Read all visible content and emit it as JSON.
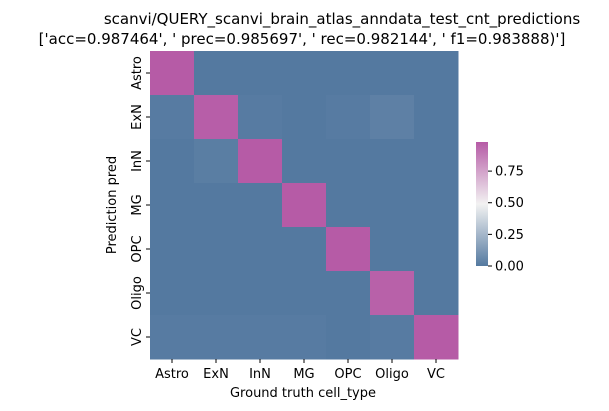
{
  "chart_data": {
    "type": "heatmap",
    "title_line1": "scanvi/QUERY_scanvi_brain_atlas_anndata_test_cnt_predictions",
    "title_line2": "['acc=0.987464', '  prec=0.985697', ' rec=0.982144', ' f1=0.983888)']",
    "xlabel": "Ground truth cell_type",
    "ylabel": "Prediction pred",
    "x_categories": [
      "Astro",
      "ExN",
      "InN",
      "MG",
      "OPC",
      "Oligo",
      "VC"
    ],
    "y_categories": [
      "Astro",
      "ExN",
      "InN",
      "MG",
      "OPC",
      "Oligo",
      "VC"
    ],
    "values": [
      [
        0.98,
        0.0,
        0.0,
        0.0,
        0.0,
        0.0,
        0.0
      ],
      [
        0.01,
        0.97,
        0.01,
        0.0,
        0.01,
        0.03,
        0.0
      ],
      [
        0.0,
        0.02,
        0.98,
        0.0,
        0.0,
        0.0,
        0.0
      ],
      [
        0.0,
        0.0,
        0.0,
        0.99,
        0.0,
        0.0,
        0.0
      ],
      [
        0.0,
        0.0,
        0.0,
        0.0,
        0.99,
        0.0,
        0.0
      ],
      [
        0.0,
        0.0,
        0.0,
        0.0,
        0.0,
        0.96,
        0.0
      ],
      [
        0.01,
        0.01,
        0.01,
        0.01,
        0.0,
        0.01,
        0.98
      ]
    ],
    "colorbar": {
      "range": [
        0,
        0.98
      ],
      "ticks": [
        0.0,
        0.25,
        0.5,
        0.75
      ],
      "tick_labels": [
        "0.00",
        "0.25",
        "0.50",
        "0.75"
      ],
      "colors": {
        "low": "#5479a0",
        "mid": "#f2f2f2",
        "high": "#b65ba6"
      }
    }
  }
}
